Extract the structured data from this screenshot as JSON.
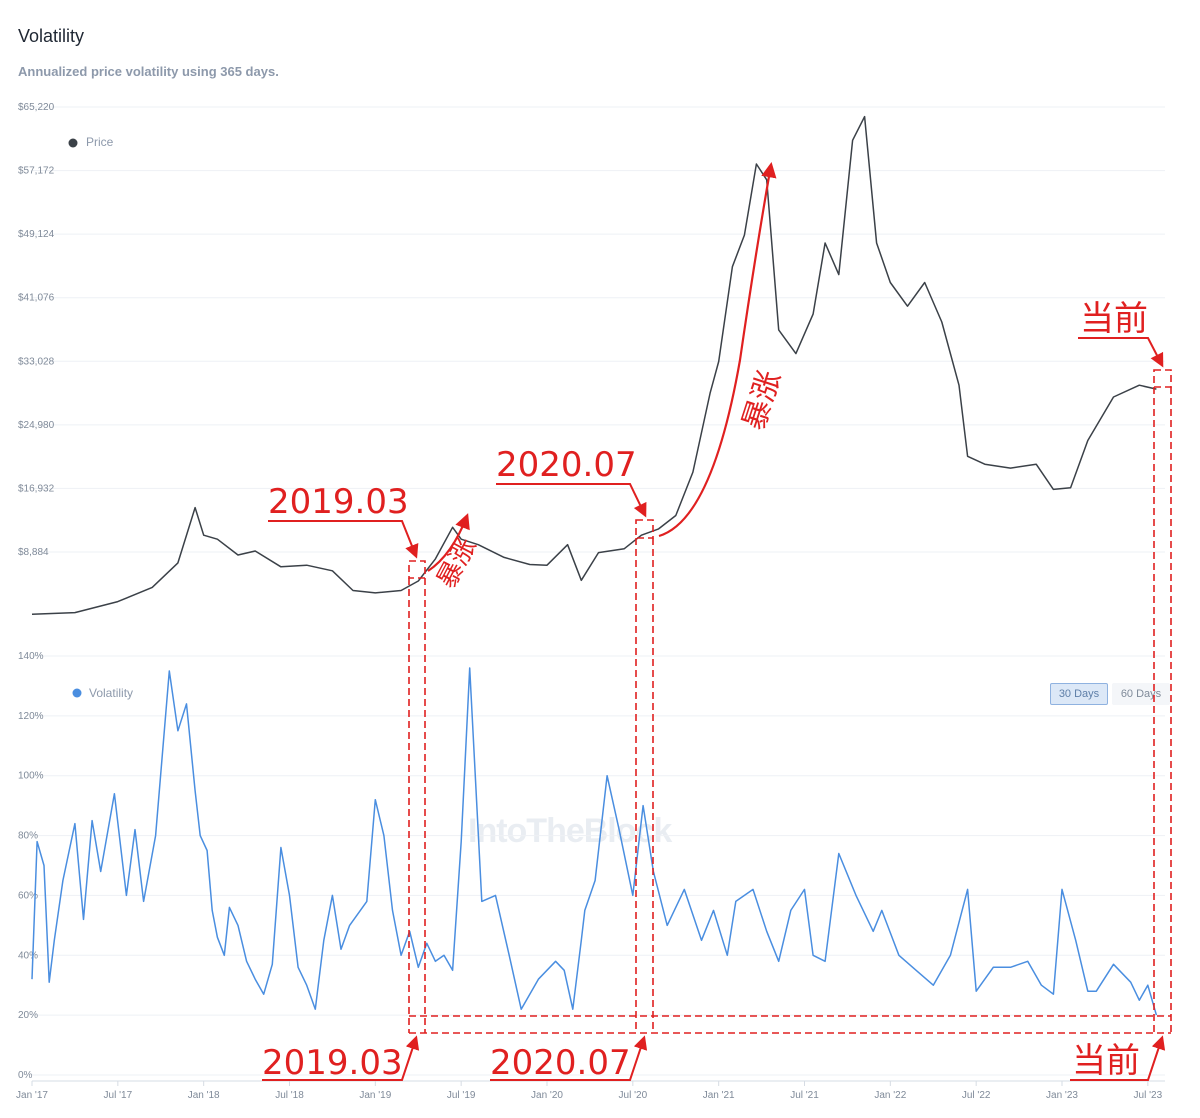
{
  "header": {
    "title": "Volatility",
    "subtitle": "Annualized price volatility using 365 days."
  },
  "watermark": "IntoTheBlock",
  "controls": {
    "window_options": [
      "30 Days",
      "60 Days"
    ],
    "selected": "30 Days"
  },
  "colors": {
    "price": "#3b4148",
    "volatility": "#4a8ee0",
    "annotation": "#e02020"
  },
  "chart_data": [
    {
      "type": "line",
      "name": "price-panel",
      "legend": "Price",
      "legend_position": "top-left",
      "y_tick_labels": [
        "$8,884",
        "$16,932",
        "$24,980",
        "$33,028",
        "$41,076",
        "$49,124",
        "$57,172",
        "$65,220"
      ],
      "y_ticks": [
        8884,
        16932,
        24980,
        33028,
        41076,
        49124,
        57172,
        65220
      ],
      "ylim": [
        2800,
        65220
      ],
      "x": [
        2017.0,
        2017.25,
        2017.5,
        2017.7,
        2017.85,
        2017.95,
        2018.0,
        2018.08,
        2018.2,
        2018.3,
        2018.45,
        2018.6,
        2018.75,
        2018.87,
        2019.0,
        2019.15,
        2019.25,
        2019.35,
        2019.45,
        2019.5,
        2019.6,
        2019.75,
        2019.9,
        2020.0,
        2020.12,
        2020.2,
        2020.3,
        2020.45,
        2020.55,
        2020.65,
        2020.75,
        2020.85,
        2020.95,
        2021.0,
        2021.08,
        2021.15,
        2021.22,
        2021.28,
        2021.35,
        2021.45,
        2021.55,
        2021.62,
        2021.7,
        2021.78,
        2021.85,
        2021.92,
        2022.0,
        2022.1,
        2022.2,
        2022.3,
        2022.4,
        2022.45,
        2022.55,
        2022.7,
        2022.85,
        2022.95,
        2023.05,
        2023.15,
        2023.3,
        2023.45,
        2023.55
      ],
      "values": [
        1000,
        1200,
        2600,
        4400,
        7500,
        14500,
        11000,
        10500,
        8500,
        9000,
        7000,
        7200,
        6500,
        4000,
        3700,
        4000,
        5200,
        8000,
        12000,
        10500,
        9800,
        8200,
        7300,
        7200,
        9800,
        5300,
        8800,
        9300,
        11000,
        11800,
        13500,
        19000,
        29000,
        33000,
        45000,
        49000,
        58000,
        56000,
        37000,
        34000,
        39000,
        48000,
        44000,
        61000,
        64000,
        48000,
        43000,
        40000,
        43000,
        38000,
        30000,
        21000,
        20000,
        19500,
        20000,
        16800,
        17000,
        23000,
        28500,
        30000,
        29500
      ],
      "x_tick_labels": [
        "Jan '17",
        "Jul '17",
        "Jan '18",
        "Jul '18",
        "Jan '19",
        "Jul '19",
        "Jan '20",
        "Jul '20",
        "Jan '21",
        "Jul '21",
        "Jan '22",
        "Jul '22",
        "Jan '23",
        "Jul '23"
      ]
    },
    {
      "type": "line",
      "name": "volatility-panel",
      "legend": "Volatility",
      "legend_position": "top-left",
      "y_tick_labels": [
        "0%",
        "20%",
        "40%",
        "60%",
        "80%",
        "100%",
        "120%",
        "140%"
      ],
      "y_ticks": [
        0,
        20,
        40,
        60,
        80,
        100,
        120,
        140
      ],
      "ylim": [
        0,
        140
      ],
      "x": [
        2017.0,
        2017.03,
        2017.07,
        2017.1,
        2017.13,
        2017.18,
        2017.25,
        2017.3,
        2017.35,
        2017.4,
        2017.48,
        2017.55,
        2017.6,
        2017.65,
        2017.72,
        2017.8,
        2017.85,
        2017.9,
        2017.95,
        2017.98,
        2018.02,
        2018.05,
        2018.08,
        2018.12,
        2018.15,
        2018.2,
        2018.25,
        2018.3,
        2018.35,
        2018.4,
        2018.45,
        2018.5,
        2018.55,
        2018.6,
        2018.65,
        2018.7,
        2018.75,
        2018.8,
        2018.85,
        2018.95,
        2019.0,
        2019.05,
        2019.1,
        2019.15,
        2019.2,
        2019.25,
        2019.3,
        2019.35,
        2019.4,
        2019.45,
        2019.5,
        2019.55,
        2019.62,
        2019.7,
        2019.78,
        2019.85,
        2019.95,
        2020.05,
        2020.1,
        2020.15,
        2020.2,
        2020.22,
        2020.28,
        2020.35,
        2020.42,
        2020.5,
        2020.56,
        2020.62,
        2020.7,
        2020.8,
        2020.9,
        2020.97,
        2021.05,
        2021.1,
        2021.2,
        2021.28,
        2021.35,
        2021.42,
        2021.5,
        2021.55,
        2021.62,
        2021.7,
        2021.8,
        2021.9,
        2021.95,
        2022.05,
        2022.15,
        2022.25,
        2022.35,
        2022.45,
        2022.5,
        2022.6,
        2022.7,
        2022.8,
        2022.88,
        2022.95,
        2023.0,
        2023.08,
        2023.15,
        2023.2,
        2023.3,
        2023.4,
        2023.45,
        2023.5,
        2023.55
      ],
      "values": [
        32,
        78,
        70,
        31,
        45,
        65,
        84,
        52,
        85,
        68,
        94,
        60,
        82,
        58,
        80,
        135,
        115,
        124,
        95,
        80,
        75,
        55,
        46,
        40,
        56,
        50,
        38,
        32,
        27,
        37,
        76,
        60,
        36,
        30,
        22,
        45,
        60,
        42,
        50,
        58,
        92,
        80,
        55,
        40,
        48,
        36,
        44,
        38,
        40,
        35,
        78,
        136,
        58,
        60,
        40,
        22,
        32,
        38,
        35,
        22,
        45,
        55,
        65,
        100,
        82,
        60,
        90,
        68,
        50,
        62,
        45,
        55,
        40,
        58,
        62,
        48,
        38,
        55,
        62,
        40,
        38,
        74,
        60,
        48,
        55,
        40,
        35,
        30,
        40,
        62,
        28,
        36,
        36,
        38,
        30,
        27,
        62,
        45,
        28,
        28,
        37,
        31,
        25,
        30,
        20
      ],
      "x_tick_labels": [
        "Jan '17",
        "Jul '17",
        "Jan '18",
        "Jul '18",
        "Jan '19",
        "Jul '19",
        "Jan '20",
        "Jul '20",
        "Jan '21",
        "Jul '21",
        "Jan '22",
        "Jul '22",
        "Jan '23",
        "Jul '23"
      ]
    }
  ],
  "annotations": {
    "price_labels": [
      "2019.03",
      "2020.07",
      "当前"
    ],
    "surge_labels": [
      "暴涨",
      "暴涨"
    ],
    "volatility_labels": [
      "2019.03",
      "2020.07",
      "当前"
    ]
  }
}
